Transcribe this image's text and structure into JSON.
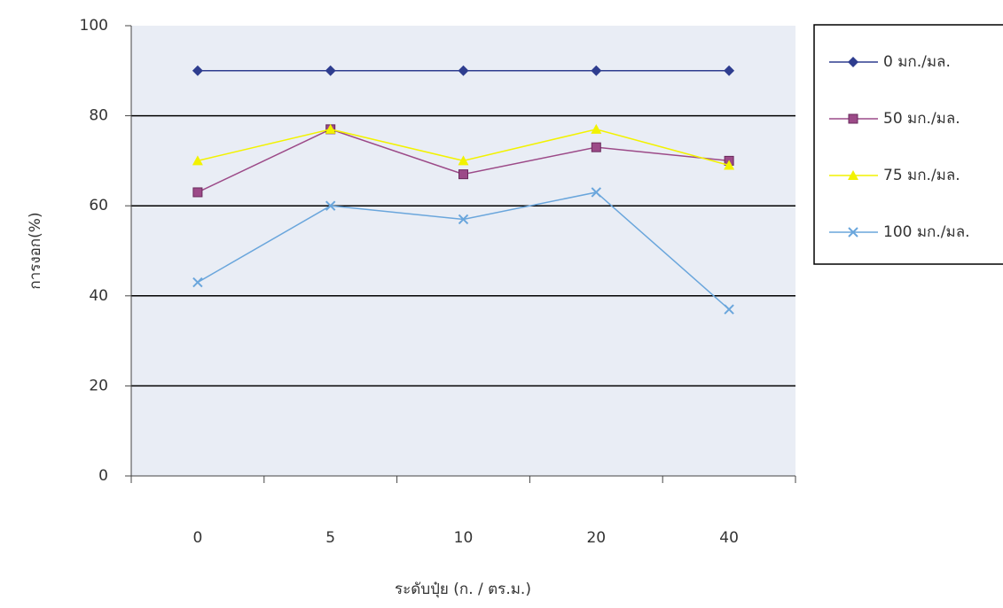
{
  "chart_data": {
    "type": "line",
    "x_label": "ระดับปุ๋ย (ก. / ตร.ม.)",
    "y_label": "การงอก(%)",
    "categories": [
      "0",
      "5",
      "10",
      "20",
      "40"
    ],
    "series": [
      {
        "name": "0 มก./มล.",
        "color": "#2e3d8f",
        "marker": "diamond",
        "values": [
          90,
          90,
          90,
          90,
          90
        ]
      },
      {
        "name": "50 มก./มล.",
        "color": "#9c4a88",
        "marker": "square",
        "values": [
          63,
          77,
          67,
          73,
          70
        ]
      },
      {
        "name": "75 มก./มล.",
        "color": "#f2f200",
        "marker": "triangle",
        "values": [
          70,
          77,
          70,
          77,
          69
        ]
      },
      {
        "name": "100 มก./มล.",
        "color": "#6aa6dc",
        "marker": "x",
        "values": [
          43,
          60,
          57,
          63,
          37
        ]
      }
    ],
    "ylim": [
      0,
      100
    ],
    "yticks": [
      0,
      20,
      40,
      60,
      80,
      100
    ],
    "grid": true,
    "legend": "right"
  }
}
